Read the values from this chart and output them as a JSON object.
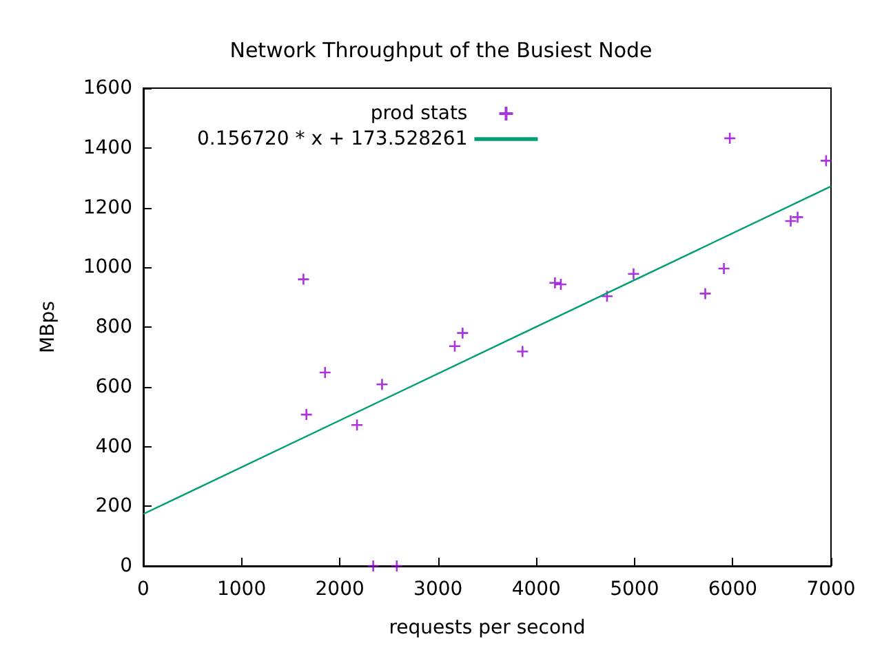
{
  "chart_data": {
    "type": "scatter",
    "title": "Network Throughput of the Busiest Node",
    "xlabel": "requests per second",
    "ylabel": "MBps",
    "xlim": [
      0,
      7000
    ],
    "xticks": [
      0,
      1000,
      2000,
      3000,
      4000,
      5000,
      6000,
      7000
    ],
    "ylim": [
      0,
      1600
    ],
    "yticks": [
      0,
      200,
      400,
      600,
      800,
      1000,
      1200,
      1400,
      1600
    ],
    "grid": false,
    "legend": "top",
    "marker": "cross",
    "series": [
      {
        "name": "prod stats",
        "color": "#9400d3",
        "x": [
          1630,
          1660,
          1850,
          2175,
          2430,
          2340,
          2580,
          3170,
          3250,
          3860,
          4190,
          4250,
          4720,
          4990,
          5720,
          5910,
          5970,
          6590,
          6660,
          6950
        ],
        "values": [
          960,
          507,
          648,
          472,
          608,
          0,
          0,
          736,
          780,
          718,
          948,
          943,
          903,
          978,
          912,
          996,
          1432,
          1155,
          1168,
          1357
        ]
      },
      {
        "name": "0.156720 * x + 173.528261",
        "type": "line",
        "marker": "none",
        "color": "#009e73",
        "x": [
          0,
          7000
        ],
        "values": [
          174,
          1271
        ]
      }
    ]
  }
}
